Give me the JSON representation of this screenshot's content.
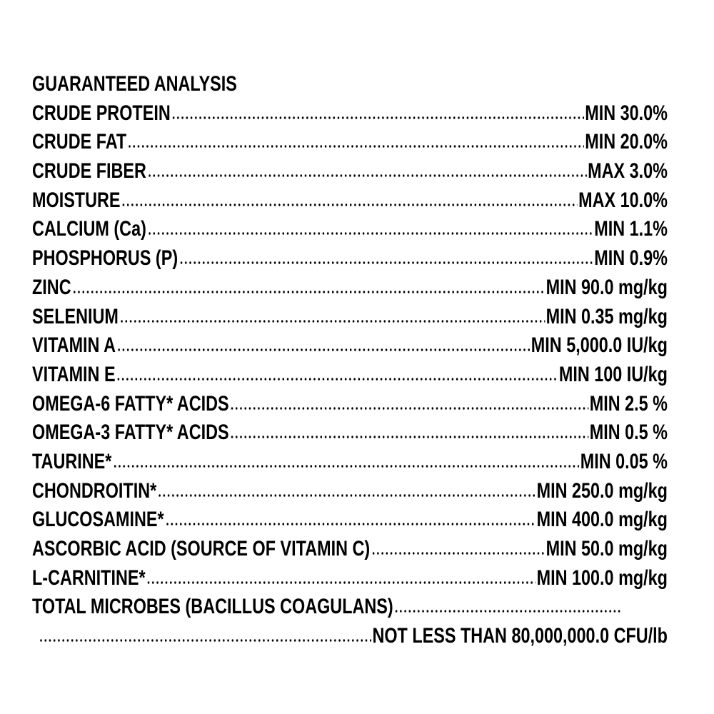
{
  "header": {
    "title": "GUARANTEED ANALYSIS"
  },
  "rows": [
    {
      "name": "CRUDE PROTEIN",
      "value": "MIN 30.0%"
    },
    {
      "name": "CRUDE FAT",
      "value": "MIN 20.0%"
    },
    {
      "name": "CRUDE FIBER",
      "value": "MAX 3.0%"
    },
    {
      "name": "MOISTURE",
      "value": "MAX 10.0%"
    },
    {
      "name": "CALCIUM (Ca)",
      "value": "MIN 1.1%"
    },
    {
      "name": "PHOSPHORUS (P)",
      "value": "MIN 0.9%"
    },
    {
      "name": "ZINC",
      "value": "MIN 90.0 mg/kg"
    },
    {
      "name": "SELENIUM",
      "value": "MIN 0.35 mg/kg"
    },
    {
      "name": "VITAMIN A",
      "value": "MIN 5,000.0 IU/kg"
    },
    {
      "name": "VITAMIN E",
      "value": "MIN 100 IU/kg"
    },
    {
      "name": "OMEGA-6 FATTY* ACIDS",
      "value": "MIN 2.5 %"
    },
    {
      "name": "OMEGA-3 FATTY* ACIDS",
      "value": "MIN 0.5 %"
    },
    {
      "name": "TAURINE*",
      "value": "MIN 0.05 %"
    },
    {
      "name": "CHONDROITIN*",
      "value": "MIN 250.0 mg/kg"
    },
    {
      "name": "GLUCOSAMINE*",
      "value": "MIN 400.0 mg/kg"
    },
    {
      "name": "ASCORBIC ACID (SOURCE OF VITAMIN C)",
      "value": "MIN 50.0 mg/kg"
    },
    {
      "name": "L-CARNITINE*",
      "value": "MIN 100.0 mg/kg"
    }
  ],
  "total": {
    "name": "TOTAL MICROBES (BACILLUS COAGULANS)",
    "value": "NOT LESS THAN 80,000,000.0 CFU/lb"
  }
}
